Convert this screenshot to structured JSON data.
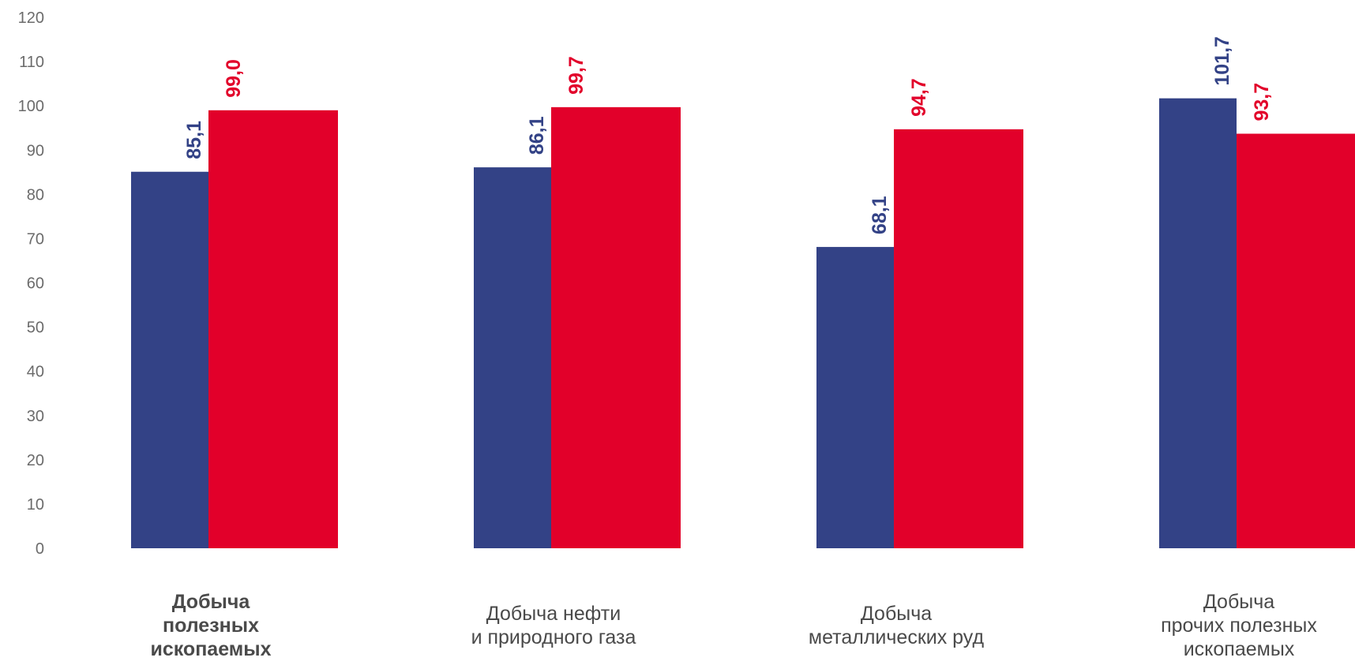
{
  "chart_data": {
    "type": "bar",
    "categories": [
      "Добыча\nполезных\nископаемых",
      "Добыча нефти\nи природного газа",
      "Добыча\nметаллических руд",
      "Добыча\nпрочих полезных\nископаемых"
    ],
    "category_bold": [
      true,
      false,
      false,
      false
    ],
    "series": [
      {
        "values": [
          85.1,
          86.1,
          68.1,
          101.7
        ],
        "labels": [
          "85,1",
          "86,1",
          "68,1",
          "101,7"
        ],
        "color": "#334286"
      },
      {
        "values": [
          99.0,
          99.7,
          94.7,
          93.7
        ],
        "labels": [
          "99,0",
          "99,7",
          "94,7",
          "93,7"
        ],
        "color": "#e2002a"
      }
    ],
    "ylim": [
      0,
      120
    ],
    "yticks": [
      "0",
      "10",
      "20",
      "30",
      "40",
      "50",
      "60",
      "70",
      "80",
      "90",
      "100",
      "110",
      "120"
    ],
    "grid": false,
    "legend": "none",
    "title": "",
    "xlabel": "",
    "ylabel": ""
  }
}
